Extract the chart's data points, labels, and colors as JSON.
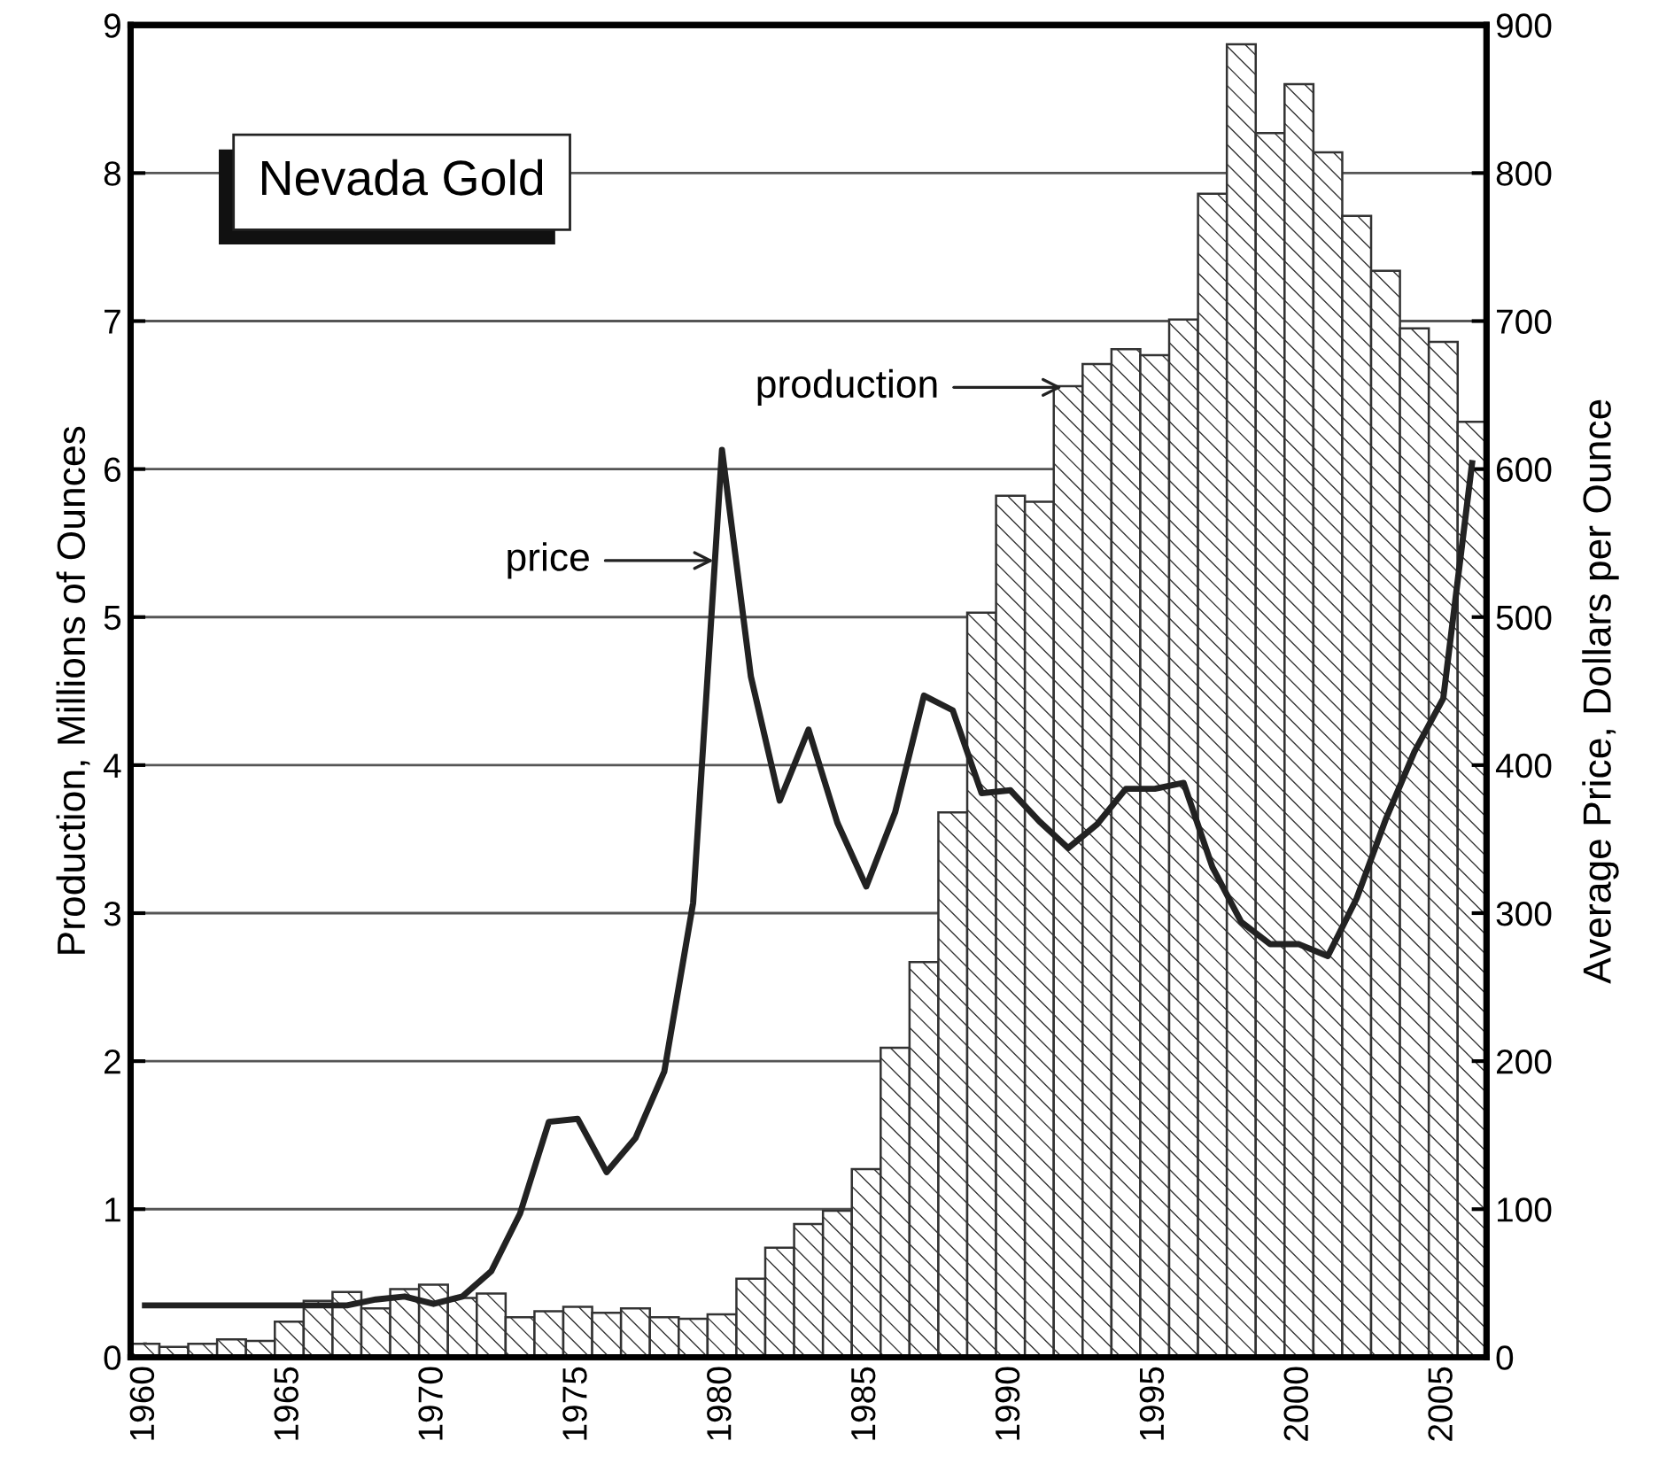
{
  "chart_data": {
    "type": "bar",
    "title": "Nevada Gold",
    "ylabel": "Production, Millions of Ounces",
    "y2label": "Average Price, Dollars per Ounce",
    "x": [
      1960,
      1961,
      1962,
      1963,
      1964,
      1965,
      1966,
      1967,
      1968,
      1969,
      1970,
      1971,
      1972,
      1973,
      1974,
      1975,
      1976,
      1977,
      1978,
      1979,
      1980,
      1981,
      1982,
      1983,
      1984,
      1985,
      1986,
      1987,
      1988,
      1989,
      1990,
      1991,
      1992,
      1993,
      1994,
      1995,
      1996,
      1997,
      1998,
      1999,
      2000,
      2001,
      2002,
      2003,
      2004,
      2005,
      2006
    ],
    "series": [
      {
        "type": "bar",
        "color": "#333333",
        "values": [
          0.09,
          0.07,
          0.09,
          0.12,
          0.11,
          0.24,
          0.38,
          0.44,
          0.33,
          0.46,
          0.49,
          0.4,
          0.43,
          0.27,
          0.31,
          0.34,
          0.3,
          0.33,
          0.27,
          0.26,
          0.29,
          0.53,
          0.74,
          0.9,
          0.99,
          1.27,
          2.09,
          2.67,
          3.68,
          5.03,
          5.82,
          5.78,
          6.56,
          6.71,
          6.81,
          6.77,
          7.01,
          7.86,
          8.87,
          8.27,
          8.6,
          8.14,
          7.71,
          7.34,
          6.95,
          6.86,
          6.32
        ]
      },
      {
        "type": "line",
        "axis": "y2",
        "color": "#222222",
        "values": [
          35,
          35,
          35,
          35,
          35,
          35,
          35,
          35,
          39,
          41,
          36,
          41,
          58,
          97,
          159,
          161,
          125,
          148,
          193,
          307,
          613,
          460,
          376,
          424,
          361,
          318,
          368,
          447,
          437,
          381,
          383,
          362,
          344,
          360,
          384,
          384,
          388,
          331,
          294,
          279,
          279,
          271,
          310,
          363,
          409,
          445,
          604
        ]
      }
    ],
    "xlim": [
      1959.5,
      2006.5
    ],
    "xticks": [
      1960,
      1965,
      1970,
      1975,
      1980,
      1985,
      1990,
      1995,
      2000,
      2005
    ],
    "ylim": [
      0,
      9
    ],
    "yticks": [
      0,
      1,
      2,
      3,
      4,
      5,
      6,
      7,
      8,
      9
    ],
    "y2lim": [
      0,
      900
    ],
    "y2ticks": [
      0,
      100,
      200,
      300,
      400,
      500,
      600,
      700,
      800,
      900
    ],
    "annotations": [
      "production",
      "price"
    ],
    "grid": "y",
    "legend": false,
    "line_style": "solid",
    "marker": "none"
  }
}
